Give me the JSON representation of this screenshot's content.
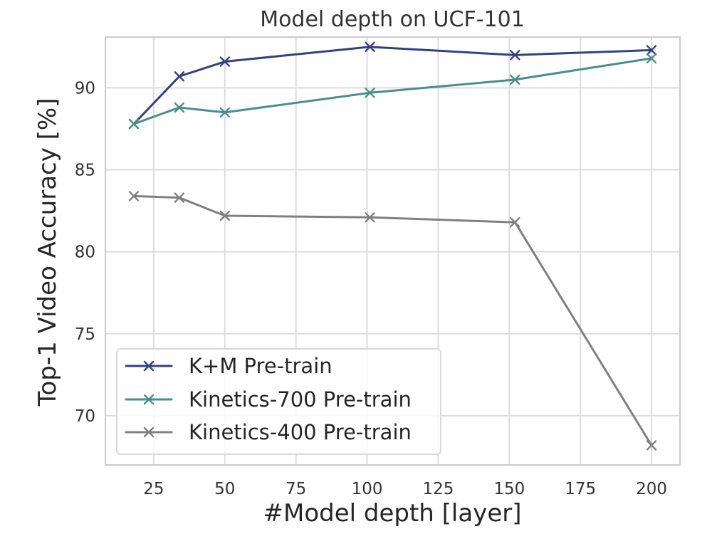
{
  "chart_data": {
    "type": "line",
    "title": "Model depth on UCF-101",
    "xlabel": "#Model depth [layer]",
    "ylabel": "Top-1 Video Accuracy [%]",
    "xlim": [
      8,
      210
    ],
    "ylim": [
      67,
      93.1
    ],
    "x_ticks": [
      25,
      50,
      75,
      100,
      125,
      150,
      175,
      200
    ],
    "y_ticks": [
      70,
      75,
      80,
      85,
      90
    ],
    "grid": true,
    "legend_position": "lower-left",
    "marker": "x",
    "series": [
      {
        "name": "K+M Pre-train",
        "color": "#35417f",
        "x": [
          18,
          34,
          50,
          101,
          152,
          200
        ],
        "y": [
          87.8,
          90.7,
          91.6,
          92.5,
          92.0,
          92.3
        ]
      },
      {
        "name": "Kinetics-700 Pre-train",
        "color": "#4a8f86",
        "x": [
          18,
          34,
          50,
          101,
          152,
          200
        ],
        "y": [
          87.8,
          88.8,
          88.5,
          89.7,
          90.5,
          91.8
        ]
      },
      {
        "name": "Kinetics-400 Pre-train",
        "color": "#808080",
        "x": [
          18,
          34,
          50,
          101,
          152,
          200
        ],
        "y": [
          83.4,
          83.3,
          82.2,
          82.1,
          81.8,
          68.2
        ]
      }
    ]
  }
}
